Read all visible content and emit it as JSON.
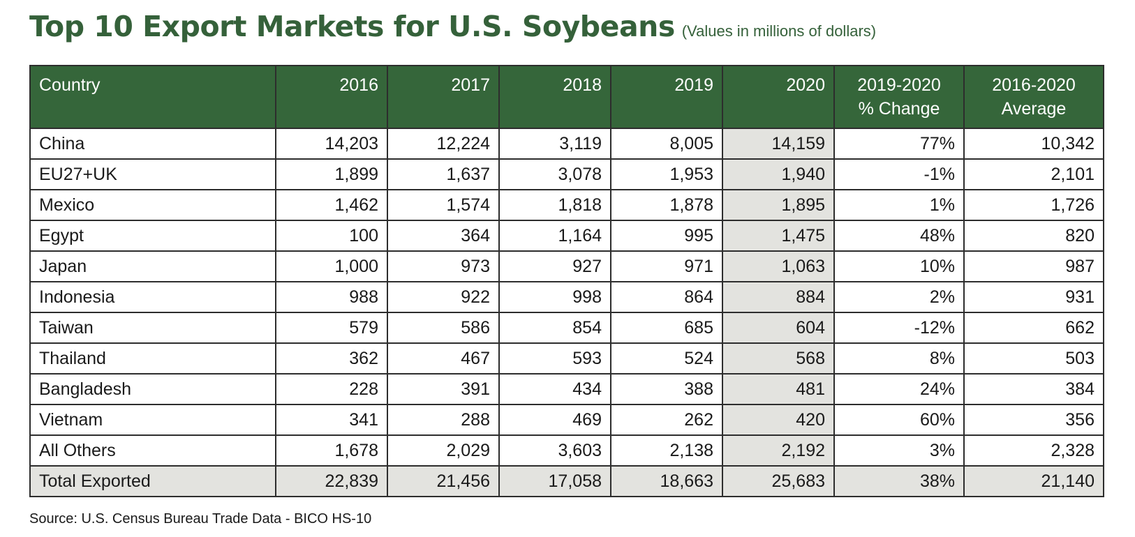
{
  "title": "Top 10 Export Markets for U.S. Soybeans",
  "subtitle": "(Values in millions of dollars)",
  "source": "Source: U.S. Census Bureau Trade Data - BICO HS-10",
  "colors": {
    "header_bg": "#35663a",
    "title": "#35613a",
    "highlight": "#e3e3df"
  },
  "chart_data": {
    "type": "table",
    "title": "Top 10 Export Markets for U.S. Soybeans",
    "subtitle": "(Values in millions of dollars)",
    "columns": [
      "Country",
      "2016",
      "2017",
      "2018",
      "2019",
      "2020",
      "2019-2020 % Change",
      "2016-2020 Average"
    ],
    "header_lines": [
      [
        "Country"
      ],
      [
        "2016"
      ],
      [
        "2017"
      ],
      [
        "2018"
      ],
      [
        "2019"
      ],
      [
        "2020"
      ],
      [
        "2019-2020",
        "% Change"
      ],
      [
        "2016-2020",
        "Average"
      ]
    ],
    "rows": [
      [
        "China",
        "14,203",
        "12,224",
        "3,119",
        "8,005",
        "14,159",
        "77%",
        "10,342"
      ],
      [
        "EU27+UK",
        "1,899",
        "1,637",
        "3,078",
        "1,953",
        "1,940",
        "-1%",
        "2,101"
      ],
      [
        "Mexico",
        "1,462",
        "1,574",
        "1,818",
        "1,878",
        "1,895",
        "1%",
        "1,726"
      ],
      [
        "Egypt",
        "100",
        "364",
        "1,164",
        "995",
        "1,475",
        "48%",
        "820"
      ],
      [
        "Japan",
        "1,000",
        "973",
        "927",
        "971",
        "1,063",
        "10%",
        "987"
      ],
      [
        "Indonesia",
        "988",
        "922",
        "998",
        "864",
        "884",
        "2%",
        "931"
      ],
      [
        "Taiwan",
        "579",
        "586",
        "854",
        "685",
        "604",
        "-12%",
        "662"
      ],
      [
        "Thailand",
        "362",
        "467",
        "593",
        "524",
        "568",
        "8%",
        "503"
      ],
      [
        "Bangladesh",
        "228",
        "391",
        "434",
        "388",
        "481",
        "24%",
        "384"
      ],
      [
        "Vietnam",
        "341",
        "288",
        "469",
        "262",
        "420",
        "60%",
        "356"
      ],
      [
        "All Others",
        "1,678",
        "2,029",
        "3,603",
        "2,138",
        "2,192",
        "3%",
        "2,328"
      ]
    ],
    "total": [
      "Total Exported",
      "22,839",
      "21,456",
      "17,058",
      "18,663",
      "25,683",
      "38%",
      "21,140"
    ]
  }
}
